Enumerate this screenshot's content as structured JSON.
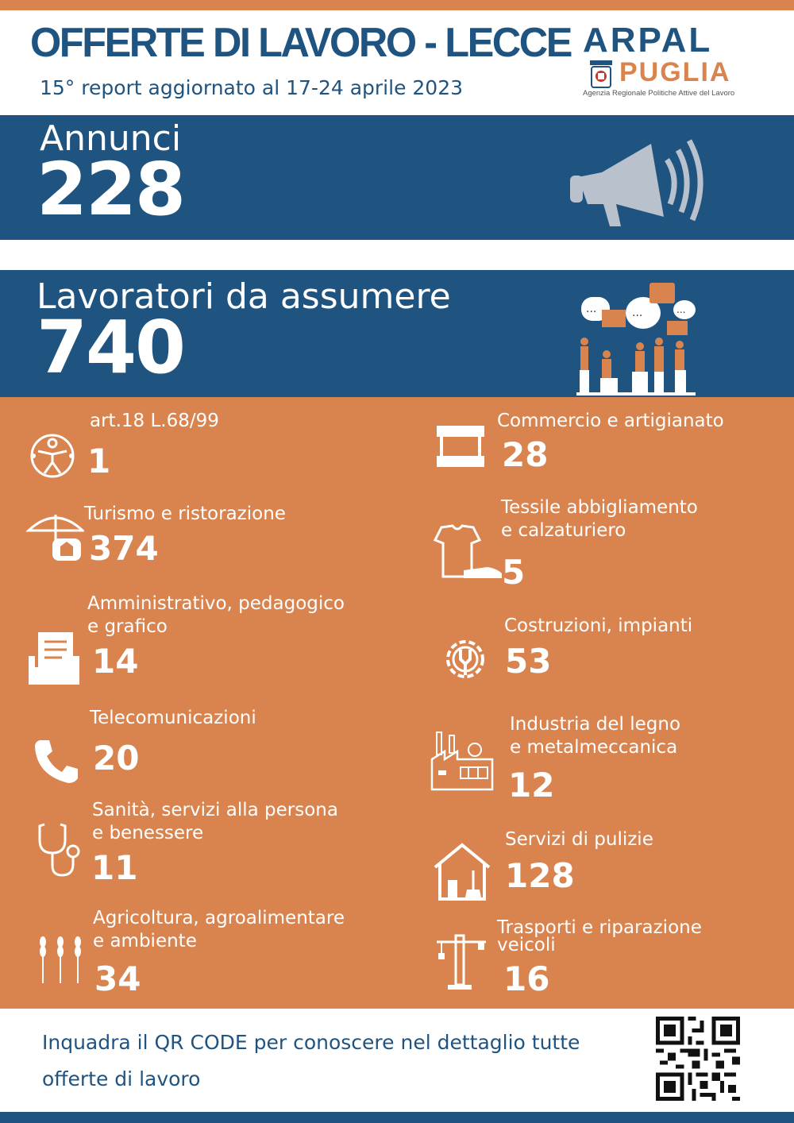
{
  "header": {
    "title": "OFFERTE DI LAVORO - LECCE",
    "subtitle": "15° report aggiornato al 17-24 aprile 2023"
  },
  "logo": {
    "name_top": "ARPAL",
    "name_bottom": "PUGLIA",
    "tagline": "Agenzia Regionale Politiche Attive del Lavoro"
  },
  "annunci": {
    "label": "Annunci",
    "value": "228",
    "icon": "megaphone-icon"
  },
  "lavoratori": {
    "label": "Lavoratori da assumere",
    "value": "740",
    "icon": "people-chat-icon"
  },
  "categories": [
    {
      "label": "art.18 L.68/99",
      "value": "1",
      "icon": "accessibility-icon"
    },
    {
      "label": "Commercio e artigianato",
      "value": "28",
      "icon": "shop-stall-icon"
    },
    {
      "label": "Turismo e ristorazione",
      "value": "374",
      "icon": "beach-umbrella-icon"
    },
    {
      "label": "Tessile abbigliamento\ne calzaturiero",
      "value": "5",
      "icon": "tshirt-shoe-icon"
    },
    {
      "label": "Amministrativo, pedagogico\ne grafico",
      "value": "14",
      "icon": "document-tray-icon"
    },
    {
      "label": "Costruzioni, impianti",
      "value": "53",
      "icon": "gear-wrench-icon"
    },
    {
      "label": "Telecomunicazioni",
      "value": "20",
      "icon": "phone-icon"
    },
    {
      "label": "Industria del legno\ne metalmeccanica",
      "value": "12",
      "icon": "factory-icon"
    },
    {
      "label": "Sanità, servizi alla persona\ne benessere",
      "value": "11",
      "icon": "stethoscope-icon"
    },
    {
      "label": "Servizi di pulizie",
      "value": "128",
      "icon": "house-cleaning-icon"
    },
    {
      "label": "Agricoltura,  agroalimentare\ne ambiente",
      "value": "34",
      "icon": "wheat-icon"
    },
    {
      "label": "Trasporti e riparazione\nveicoli",
      "value": "16",
      "icon": "crane-icon"
    }
  ],
  "footer": {
    "text": "Inquadra il QR CODE per conoscere nel dettaglio tutte offerte di lavoro",
    "qr_icon": "qr-code-icon"
  },
  "colors": {
    "blue": "#1f5380",
    "orange": "#d9844f",
    "white": "#ffffff"
  }
}
